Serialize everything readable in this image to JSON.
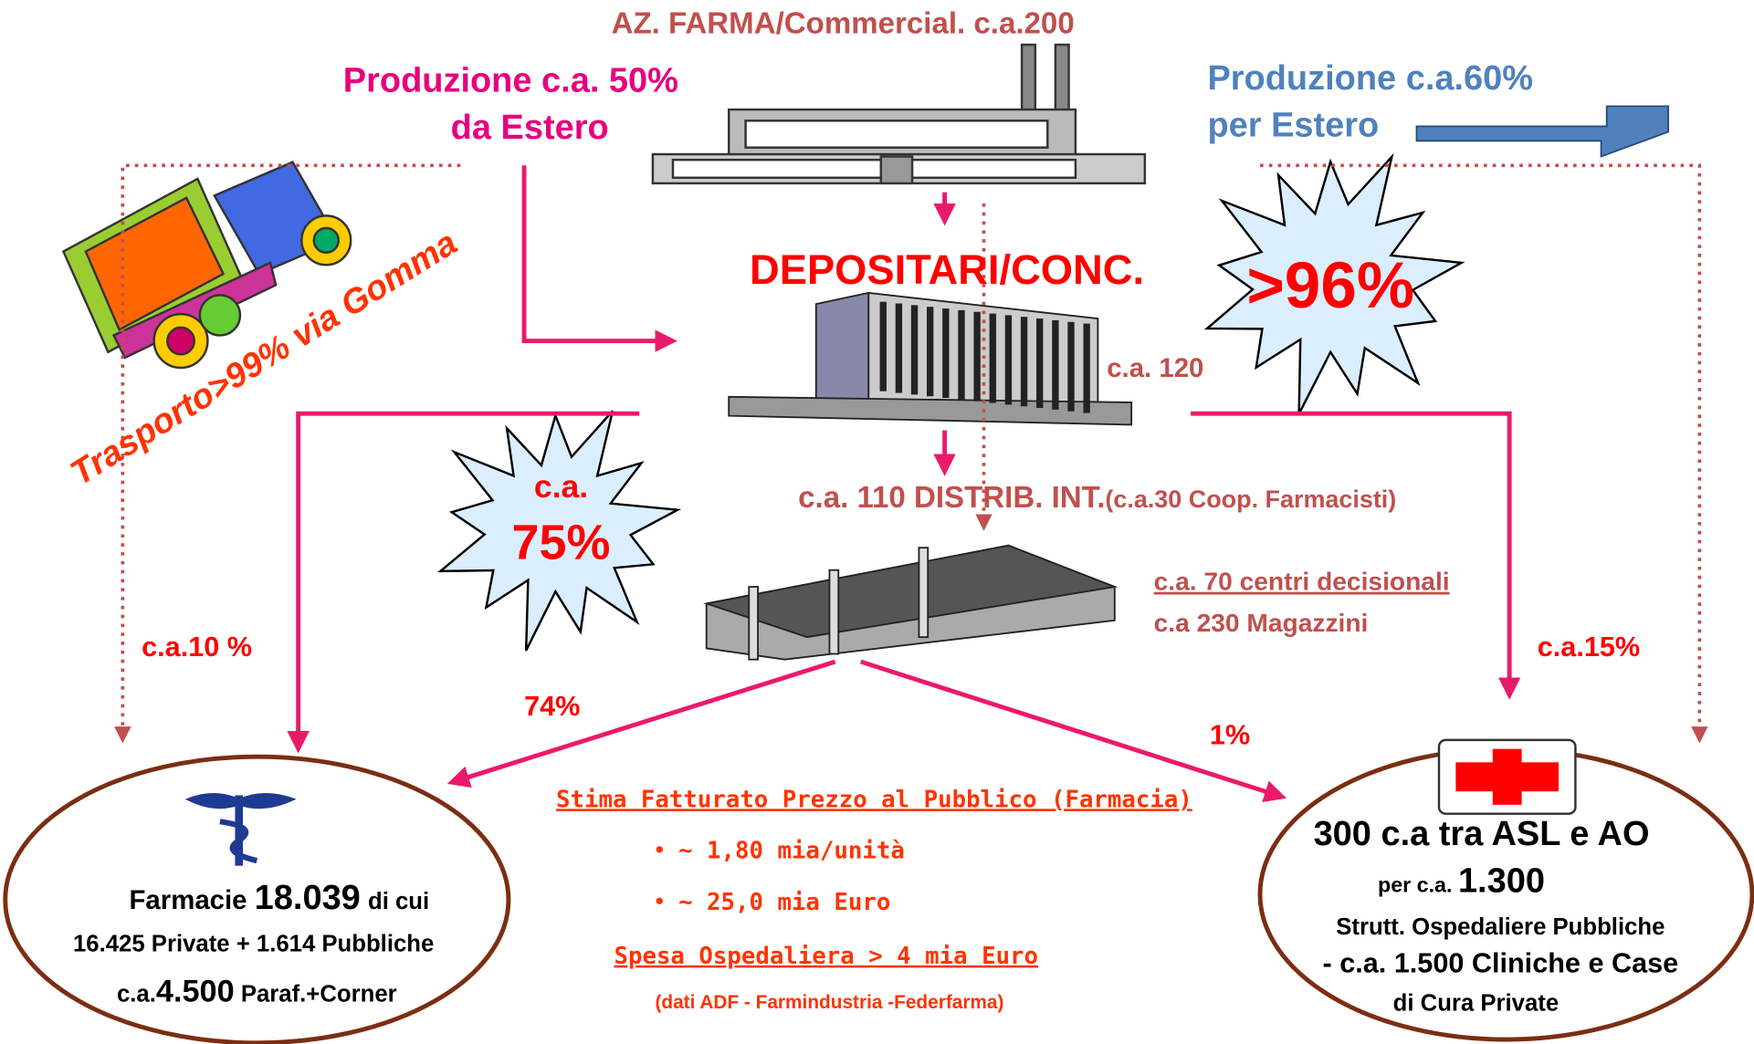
{
  "header": {
    "title": "AZ. FARMA/Commercial. c.a.200"
  },
  "import": {
    "line1": "Produzione c.a. 50%",
    "line2": "da Estero"
  },
  "export": {
    "line1": "Produzione c.a.60%",
    "line2": "per Estero"
  },
  "transport": "Trasporto>99% via Gomma",
  "depositari": {
    "label": "DEPOSITARI/CONC.",
    "count": "c.a. 120"
  },
  "burst_96": ">96%",
  "burst_75": {
    "line1": "c.a.",
    "line2": "75%"
  },
  "distrib": {
    "label": "c.a. 110  DISTRIB. INT.",
    "note": "(c.a.30 Coop. Farmacisti)",
    "centers": "c.a. 70 centri decisionali",
    "warehouses": "c.a  230 Magazzini"
  },
  "flows": {
    "left": "c.a.10 %",
    "right": "c.a.15%",
    "pharmacy": "74%",
    "hospital": "1%"
  },
  "estimate": {
    "title": "Stima Fatturato Prezzo al Pubblico (Farmacia)",
    "items": [
      "~ 1,80 mia/unità",
      "~ 25,0 mia Euro"
    ],
    "hospital_spend": "Spesa Ospedaliera > 4 mia Euro",
    "source": "(dati ADF - Farmindustria -Federfarma)"
  },
  "pharmacies": {
    "line1": [
      "Farmacie",
      "18.039",
      "di cui"
    ],
    "line2": "16.425 Private + 1.614 Pubbliche",
    "line3": [
      "c.a.",
      "4.500",
      "Paraf.+Corner"
    ]
  },
  "hospitals": {
    "line1": "300 c.a tra ASL e AO",
    "line2": [
      "per c.a.",
      "1.300"
    ],
    "line3": "Strutt. Ospedaliere Pubbliche",
    "line4": "-  c.a. 1.500 Cliniche e Case",
    "line5": "di Cura Private"
  }
}
